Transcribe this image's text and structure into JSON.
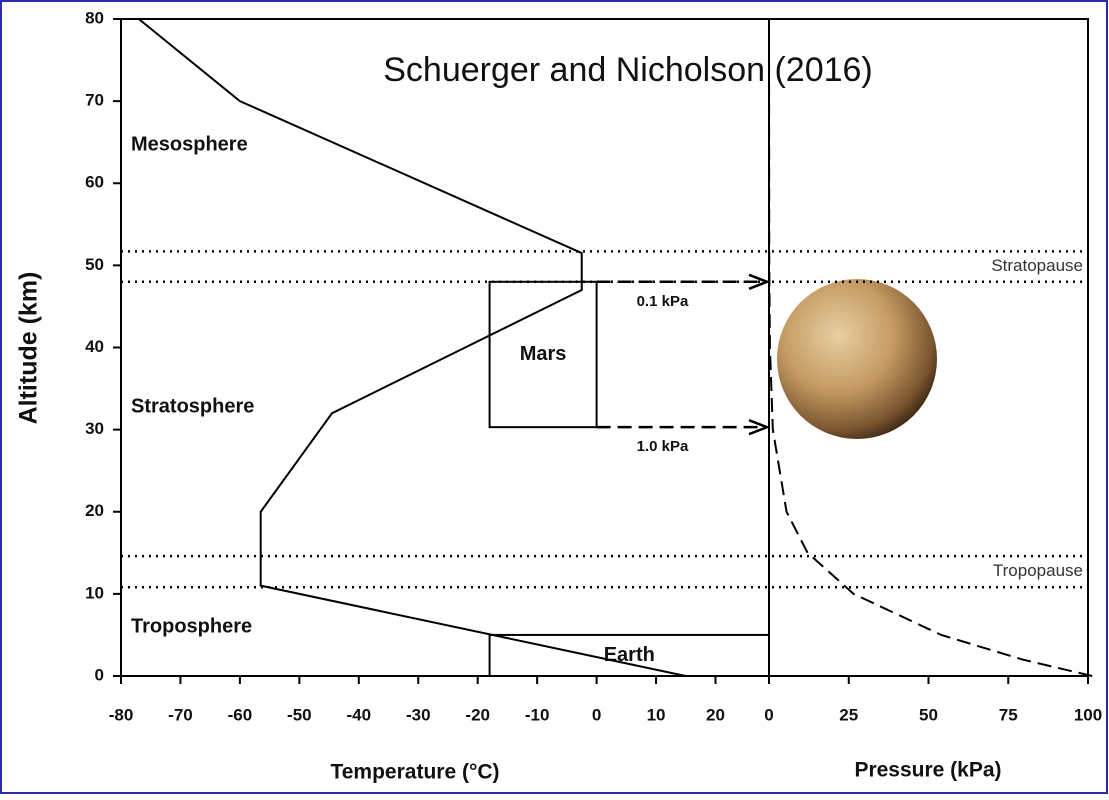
{
  "chart_data": [
    {
      "type": "line",
      "title": "Schuerger and Nicholson (2016)",
      "y_label": "Altitude (km)",
      "x_label": "Temperature (°C)",
      "x": [
        15,
        -56.5,
        -56.5,
        -44.5,
        -2.5,
        -2.5,
        -60,
        -77
      ],
      "series": [
        {
          "color": "#000000",
          "values": [
            0,
            11,
            20,
            32,
            47,
            51.5,
            70,
            80
          ]
        }
      ],
      "xlim": [
        -80,
        29
      ],
      "xticks": [
        -80,
        -70,
        -60,
        -50,
        -40,
        -30,
        -20,
        -10,
        0,
        10,
        20
      ],
      "ylim": [
        0,
        80
      ],
      "yticks": [
        0,
        10,
        20,
        30,
        40,
        50,
        60,
        70,
        80
      ],
      "hlines": [
        10.8,
        14.6,
        48,
        51.7
      ],
      "hline_labels": [
        "Tropopause",
        "Stratopause"
      ],
      "layers": [
        "Mesosphere",
        "Stratosphere",
        "Troposphere"
      ],
      "regions": [
        {
          "label": "Mars",
          "x": [
            -18,
            0
          ],
          "y": [
            30.3,
            48
          ]
        },
        {
          "label": "Earth",
          "x": [
            -18,
            29
          ],
          "y": [
            0,
            5
          ]
        }
      ]
    },
    {
      "type": "line",
      "x_label": "Pressure (kPa)",
      "x": [
        101.3,
        79.5,
        54,
        26.5,
        12.1,
        5.5,
        1.2,
        0.29,
        0.08,
        0
      ],
      "series": [
        {
          "color": "#000000",
          "dash": true,
          "values": [
            0,
            2,
            5,
            10,
            15,
            20,
            30,
            40,
            50,
            80
          ]
        }
      ],
      "xlim": [
        0,
        100
      ],
      "xticks": [
        0,
        25,
        50,
        75,
        100
      ],
      "ylim": [
        0,
        80
      ],
      "arrows": [
        {
          "label": "0.1 kPa",
          "value": 48
        },
        {
          "label": "1.0 kPa",
          "value": 30.3
        }
      ]
    }
  ]
}
